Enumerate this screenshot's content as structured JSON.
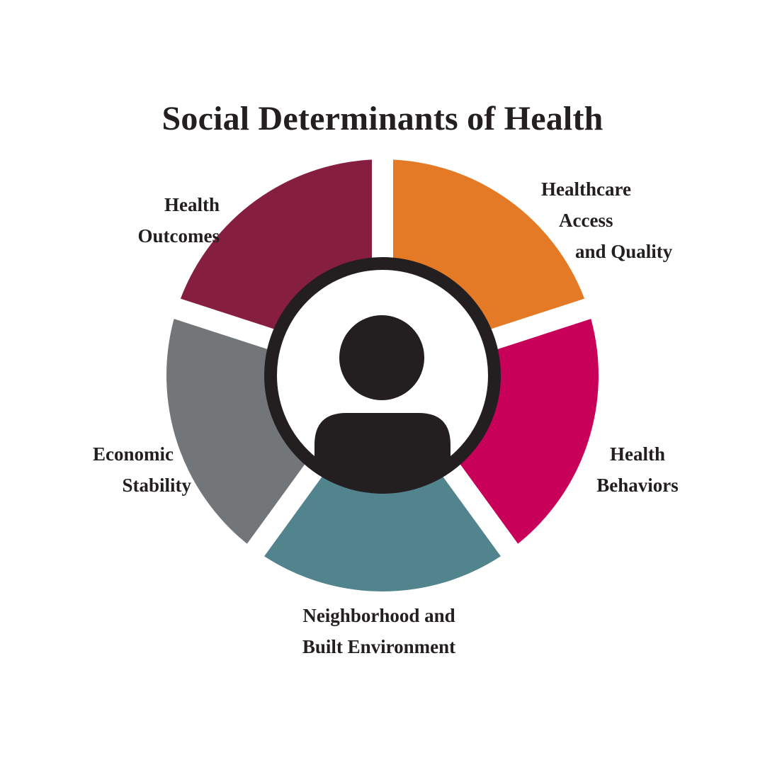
{
  "title": "Social Determinants of Health",
  "center_icon": "person-icon",
  "segments": [
    {
      "id": "healthcare-access",
      "lines": [
        "Healthcare",
        "Access",
        "and Quality"
      ],
      "color": "#e47a25"
    },
    {
      "id": "health-behaviors",
      "lines": [
        "Health",
        "Behaviors"
      ],
      "color": "#c8005a"
    },
    {
      "id": "neighborhood",
      "lines": [
        "Neighborhood and",
        "Built Environment"
      ],
      "color": "#52848e"
    },
    {
      "id": "economic-stability",
      "lines": [
        "Economic",
        "Stability"
      ],
      "color": "#737679"
    },
    {
      "id": "health-outcomes",
      "lines": [
        "Health",
        "Outcomes"
      ],
      "color": "#861e40"
    }
  ],
  "ring_color": "#231f20"
}
